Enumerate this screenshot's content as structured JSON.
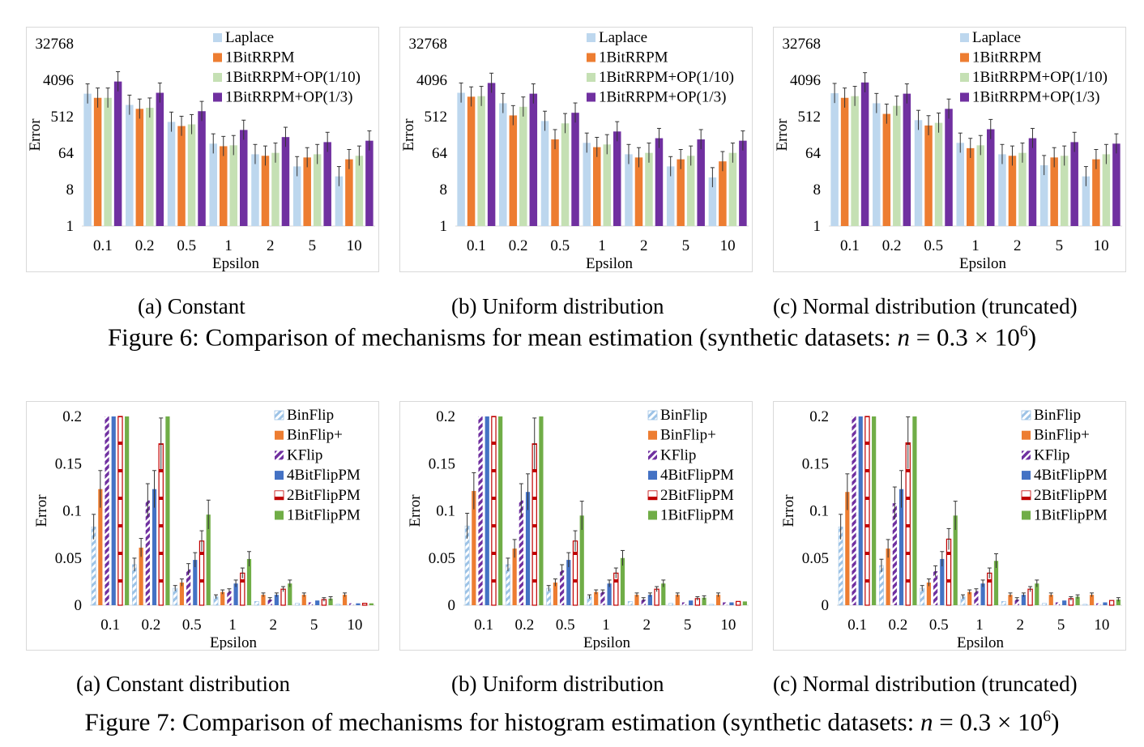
{
  "figure6": {
    "caption_prefix": "Figure 6: Comparison of mechanisms for mean estimation (synthetic datasets: ",
    "caption_var": "n",
    "caption_mid": " = 0.3 × 10",
    "caption_exp": "6",
    "caption_suffix": ")",
    "subcaptions": [
      "(a) Constant",
      "(b) Uniform distribution",
      "(c) Normal distribution (truncated)"
    ]
  },
  "figure7": {
    "caption_prefix": "Figure 7: Comparison of mechanisms for histogram estimation (synthetic datasets: ",
    "caption_var": "n",
    "caption_mid": " = 0.3 × 10",
    "caption_exp": "6",
    "caption_suffix": ")",
    "subcaptions": [
      "(a) Constant distribution",
      "(b) Uniform distribution",
      "(c) Normal distribution (truncated)"
    ]
  },
  "colors": {
    "laplace": "#bdd7ee",
    "orange": "#ed7d31",
    "lightgreen": "#c5e0b4",
    "purple": "#7030a0",
    "binflip": "#9dc3e6",
    "kflip": "#7030a0",
    "blue": "#4472c4",
    "red": "#c00000",
    "green": "#70ad47"
  },
  "chart_data": [
    {
      "type": "bar",
      "scale": "log2",
      "xlabel": "Epsilon",
      "ylabel": "Error",
      "categories": [
        "0.1",
        "0.2",
        "0.5",
        "1",
        "2",
        "5",
        "10"
      ],
      "yticks": [
        "1",
        "8",
        "64",
        "512",
        "4096",
        "32768"
      ],
      "ylim": [
        1,
        32768
      ],
      "legend_position": "top-right",
      "series": [
        {
          "name": "Laplace",
          "values": [
            1900,
            1000,
            380,
            110,
            60,
            30,
            17
          ]
        },
        {
          "name": "1BitRRPM",
          "values": [
            1500,
            800,
            300,
            95,
            55,
            50,
            45
          ]
        },
        {
          "name": "1BitRRPM+OP(1/10)",
          "values": [
            1500,
            850,
            330,
            100,
            65,
            60,
            55
          ]
        },
        {
          "name": "1BitRRPM+OP(1/3)",
          "values": [
            3800,
            2000,
            700,
            240,
            160,
            120,
            130
          ]
        }
      ]
    },
    {
      "type": "bar",
      "scale": "log2",
      "xlabel": "Epsilon",
      "ylabel": "Error",
      "categories": [
        "0.1",
        "0.2",
        "0.5",
        "1",
        "2",
        "5",
        "10"
      ],
      "yticks": [
        "1",
        "8",
        "64",
        "512",
        "4096",
        "32768"
      ],
      "ylim": [
        1,
        32768
      ],
      "legend_position": "top-right",
      "series": [
        {
          "name": "Laplace",
          "values": [
            2000,
            1100,
            400,
            115,
            60,
            30,
            16
          ]
        },
        {
          "name": "1BitRRPM",
          "values": [
            1600,
            550,
            140,
            90,
            50,
            45,
            40
          ]
        },
        {
          "name": "1BitRRPM+OP(1/10)",
          "values": [
            1650,
            900,
            350,
            105,
            65,
            55,
            65
          ]
        },
        {
          "name": "1BitRRPM+OP(1/3)",
          "values": [
            3500,
            1900,
            640,
            220,
            150,
            140,
            130
          ]
        }
      ]
    },
    {
      "type": "bar",
      "scale": "log2",
      "xlabel": "Epsilon",
      "ylabel": "Error",
      "categories": [
        "0.1",
        "0.2",
        "0.5",
        "1",
        "2",
        "5",
        "10"
      ],
      "yticks": [
        "1",
        "8",
        "64",
        "512",
        "4096",
        "32768"
      ],
      "ylim": [
        1,
        32768
      ],
      "legend_position": "top-right",
      "series": [
        {
          "name": "Laplace",
          "values": [
            1950,
            1100,
            420,
            115,
            60,
            32,
            17
          ]
        },
        {
          "name": "1BitRRPM",
          "values": [
            1500,
            600,
            310,
            85,
            55,
            50,
            45
          ]
        },
        {
          "name": "1BitRRPM+OP(1/10)",
          "values": [
            1650,
            950,
            360,
            100,
            65,
            55,
            60
          ]
        },
        {
          "name": "1BitRRPM+OP(1/3)",
          "values": [
            3600,
            1900,
            800,
            250,
            150,
            120,
            110
          ]
        }
      ]
    },
    {
      "type": "bar",
      "xlabel": "Epsilon",
      "ylabel": "Error",
      "categories": [
        "0.1",
        "0.2",
        "0.5",
        "1",
        "2",
        "5",
        "10"
      ],
      "yticks": [
        "0",
        "0.05",
        "0.1",
        "0.15",
        "0.2"
      ],
      "ylim": [
        0,
        0.2
      ],
      "legend_position": "top-right",
      "series": [
        {
          "name": "BinFlip",
          "values": [
            0.083,
            0.043,
            0.018,
            0.009,
            0.004,
            0.002,
            0.001
          ]
        },
        {
          "name": "BinFlip+",
          "values": [
            0.123,
            0.061,
            0.024,
            0.014,
            0.011,
            0.011,
            0.011
          ]
        },
        {
          "name": "KFlip",
          "values": [
            0.2,
            0.111,
            0.038,
            0.015,
            0.006,
            0.003,
            0.002
          ]
        },
        {
          "name": "4BitFlipPM",
          "values": [
            0.2,
            0.123,
            0.048,
            0.023,
            0.011,
            0.005,
            0.002
          ]
        },
        {
          "name": "2BitFlipPM",
          "values": [
            0.2,
            0.171,
            0.068,
            0.034,
            0.017,
            0.006,
            0.002
          ]
        },
        {
          "name": "1BitFlipPM",
          "values": [
            0.2,
            0.2,
            0.096,
            0.049,
            0.023,
            0.007,
            0.002
          ]
        }
      ]
    },
    {
      "type": "bar",
      "xlabel": "Epsilon",
      "ylabel": "Error",
      "categories": [
        "0.1",
        "0.2",
        "0.5",
        "1",
        "2",
        "5",
        "10"
      ],
      "yticks": [
        "0",
        "0.05",
        "0.1",
        "0.15",
        "0.2"
      ],
      "ylim": [
        0,
        0.2
      ],
      "legend_position": "top-right",
      "series": [
        {
          "name": "BinFlip",
          "values": [
            0.084,
            0.043,
            0.018,
            0.009,
            0.004,
            0.002,
            0.001
          ]
        },
        {
          "name": "BinFlip+",
          "values": [
            0.121,
            0.06,
            0.024,
            0.014,
            0.011,
            0.011,
            0.011
          ]
        },
        {
          "name": "KFlip",
          "values": [
            0.2,
            0.111,
            0.037,
            0.014,
            0.006,
            0.003,
            0.003
          ]
        },
        {
          "name": "4BitFlipPM",
          "values": [
            0.2,
            0.12,
            0.048,
            0.023,
            0.011,
            0.005,
            0.003
          ]
        },
        {
          "name": "2BitFlipPM",
          "values": [
            0.2,
            0.171,
            0.068,
            0.034,
            0.017,
            0.007,
            0.004
          ]
        },
        {
          "name": "1BitFlipPM",
          "values": [
            0.2,
            0.2,
            0.095,
            0.05,
            0.023,
            0.008,
            0.004
          ]
        }
      ]
    },
    {
      "type": "bar",
      "xlabel": "Epsilon",
      "ylabel": "Error",
      "categories": [
        "0.1",
        "0.2",
        "0.5",
        "1",
        "2",
        "5",
        "10"
      ],
      "yticks": [
        "0",
        "0.05",
        "0.1",
        "0.15",
        "0.2"
      ],
      "ylim": [
        0,
        0.2
      ],
      "legend_position": "top-right",
      "series": [
        {
          "name": "BinFlip",
          "values": [
            0.083,
            0.042,
            0.018,
            0.009,
            0.004,
            0.002,
            0.001
          ]
        },
        {
          "name": "BinFlip+",
          "values": [
            0.12,
            0.06,
            0.024,
            0.014,
            0.011,
            0.011,
            0.011
          ]
        },
        {
          "name": "KFlip",
          "values": [
            0.2,
            0.108,
            0.036,
            0.015,
            0.006,
            0.003,
            0.002
          ]
        },
        {
          "name": "4BitFlipPM",
          "values": [
            0.2,
            0.123,
            0.049,
            0.023,
            0.011,
            0.005,
            0.003
          ]
        },
        {
          "name": "2BitFlipPM",
          "values": [
            0.2,
            0.172,
            0.07,
            0.034,
            0.017,
            0.007,
            0.005
          ]
        },
        {
          "name": "1BitFlipPM",
          "values": [
            0.2,
            0.2,
            0.095,
            0.047,
            0.023,
            0.009,
            0.006
          ]
        }
      ]
    }
  ]
}
